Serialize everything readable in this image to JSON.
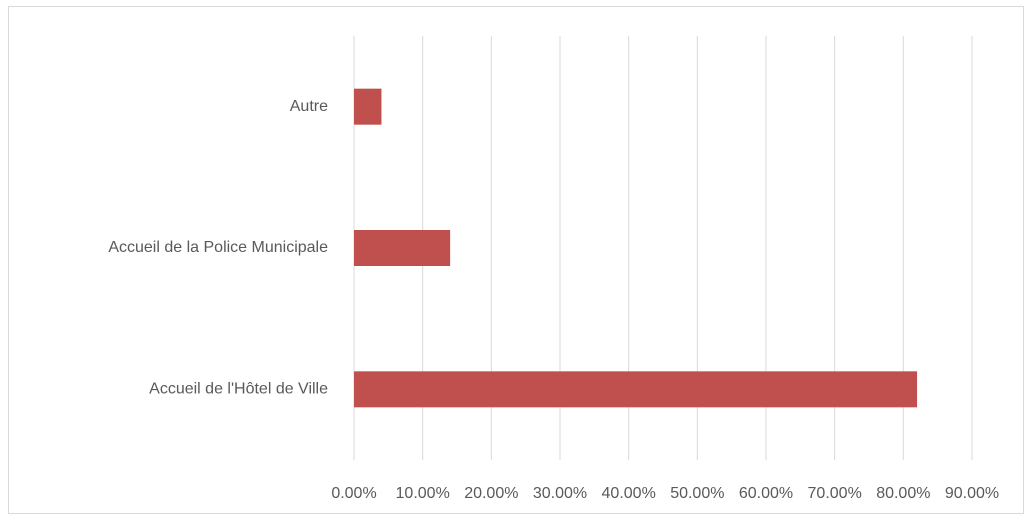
{
  "chart_data": {
    "type": "bar",
    "orientation": "horizontal",
    "categories": [
      "Accueil de l'Hôtel de Ville",
      "Accueil de la Police Municipale",
      "Autre"
    ],
    "values": [
      82,
      14,
      4
    ],
    "color": "#c0504d",
    "xlim": [
      0,
      90
    ],
    "xticks": [
      {
        "value": 0,
        "label": "0.00%"
      },
      {
        "value": 10,
        "label": "10.00%"
      },
      {
        "value": 20,
        "label": "20.00%"
      },
      {
        "value": 30,
        "label": "30.00%"
      },
      {
        "value": 40,
        "label": "40.00%"
      },
      {
        "value": 50,
        "label": "50.00%"
      },
      {
        "value": 60,
        "label": "60.00%"
      },
      {
        "value": 70,
        "label": "70.00%"
      },
      {
        "value": 80,
        "label": "80.00%"
      },
      {
        "value": 90,
        "label": "90.00%"
      }
    ],
    "grid": true
  }
}
